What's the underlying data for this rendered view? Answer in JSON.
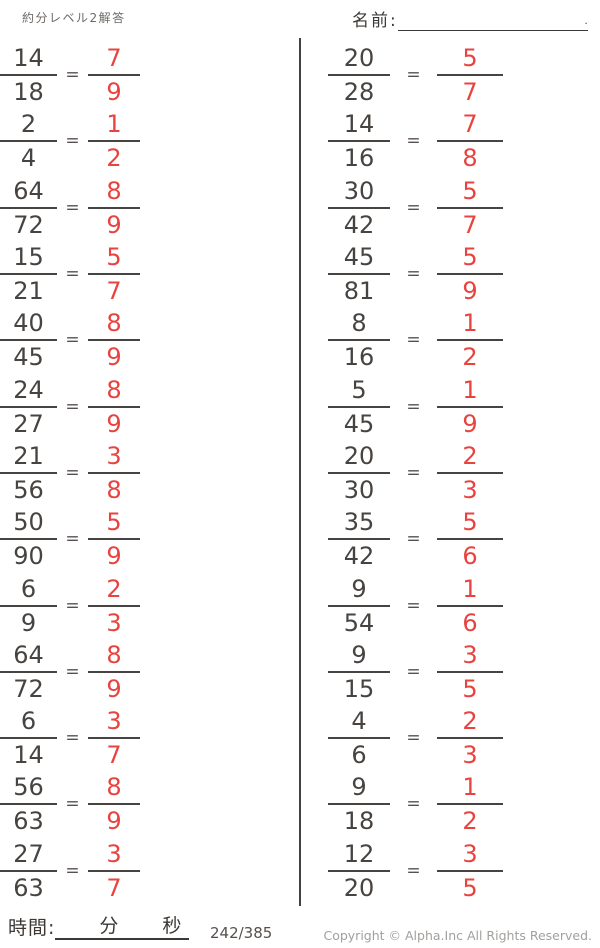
{
  "header": {
    "title": "約分レベル2解答",
    "name_label": "名前:",
    "name_line_end": "."
  },
  "symbols": {
    "equals": "="
  },
  "problems": {
    "left": [
      {
        "q_num": "14",
        "q_den": "18",
        "a_num": "7",
        "a_den": "9"
      },
      {
        "q_num": "2",
        "q_den": "4",
        "a_num": "1",
        "a_den": "2"
      },
      {
        "q_num": "64",
        "q_den": "72",
        "a_num": "8",
        "a_den": "9"
      },
      {
        "q_num": "15",
        "q_den": "21",
        "a_num": "5",
        "a_den": "7"
      },
      {
        "q_num": "40",
        "q_den": "45",
        "a_num": "8",
        "a_den": "9"
      },
      {
        "q_num": "24",
        "q_den": "27",
        "a_num": "8",
        "a_den": "9"
      },
      {
        "q_num": "21",
        "q_den": "56",
        "a_num": "3",
        "a_den": "8"
      },
      {
        "q_num": "50",
        "q_den": "90",
        "a_num": "5",
        "a_den": "9"
      },
      {
        "q_num": "6",
        "q_den": "9",
        "a_num": "2",
        "a_den": "3"
      },
      {
        "q_num": "64",
        "q_den": "72",
        "a_num": "8",
        "a_den": "9"
      },
      {
        "q_num": "6",
        "q_den": "14",
        "a_num": "3",
        "a_den": "7"
      },
      {
        "q_num": "56",
        "q_den": "63",
        "a_num": "8",
        "a_den": "9"
      },
      {
        "q_num": "27",
        "q_den": "63",
        "a_num": "3",
        "a_den": "7"
      }
    ],
    "right": [
      {
        "q_num": "20",
        "q_den": "28",
        "a_num": "5",
        "a_den": "7"
      },
      {
        "q_num": "14",
        "q_den": "16",
        "a_num": "7",
        "a_den": "8"
      },
      {
        "q_num": "30",
        "q_den": "42",
        "a_num": "5",
        "a_den": "7"
      },
      {
        "q_num": "45",
        "q_den": "81",
        "a_num": "5",
        "a_den": "9"
      },
      {
        "q_num": "8",
        "q_den": "16",
        "a_num": "1",
        "a_den": "2"
      },
      {
        "q_num": "5",
        "q_den": "45",
        "a_num": "1",
        "a_den": "9"
      },
      {
        "q_num": "20",
        "q_den": "30",
        "a_num": "2",
        "a_den": "3"
      },
      {
        "q_num": "35",
        "q_den": "42",
        "a_num": "5",
        "a_den": "6"
      },
      {
        "q_num": "9",
        "q_den": "54",
        "a_num": "1",
        "a_den": "6"
      },
      {
        "q_num": "9",
        "q_den": "15",
        "a_num": "3",
        "a_den": "5"
      },
      {
        "q_num": "4",
        "q_den": "6",
        "a_num": "2",
        "a_den": "3"
      },
      {
        "q_num": "9",
        "q_den": "18",
        "a_num": "1",
        "a_den": "2"
      },
      {
        "q_num": "12",
        "q_den": "20",
        "a_num": "3",
        "a_den": "5"
      }
    ]
  },
  "footer": {
    "time_label": "時間:",
    "minutes_label": "分",
    "seconds_label": "秒",
    "page_number": "242/385",
    "copyright": "Copyright ©  Alpha.Inc All Rights Reserved."
  },
  "colors": {
    "answer_red": "#e8433f",
    "ink": "#474340",
    "muted_gray": "#a39f9c"
  }
}
